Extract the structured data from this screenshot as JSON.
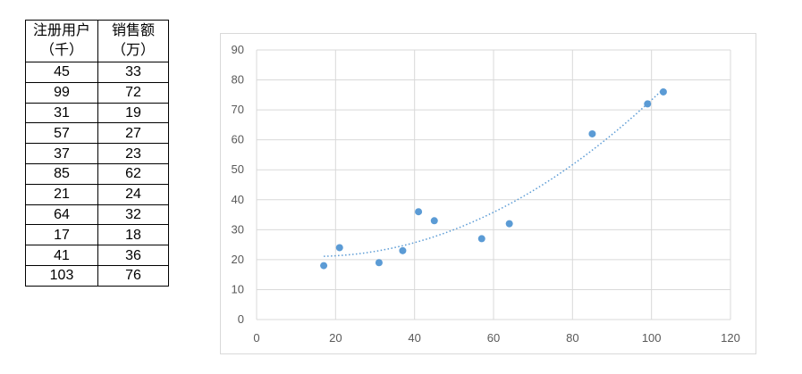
{
  "table": {
    "headers": [
      {
        "line1": "注册用户",
        "line2": "（千）"
      },
      {
        "line1": "销售额",
        "line2": "（万）"
      }
    ],
    "rows": [
      [
        45,
        33
      ],
      [
        99,
        72
      ],
      [
        31,
        19
      ],
      [
        57,
        27
      ],
      [
        37,
        23
      ],
      [
        85,
        62
      ],
      [
        21,
        24
      ],
      [
        64,
        32
      ],
      [
        17,
        18
      ],
      [
        41,
        36
      ],
      [
        103,
        76
      ]
    ]
  },
  "chart_data": {
    "type": "scatter",
    "title": "",
    "xlabel": "",
    "ylabel": "",
    "xlim": [
      0,
      120
    ],
    "ylim": [
      0,
      90
    ],
    "xticks": [
      0,
      20,
      40,
      60,
      80,
      100,
      120
    ],
    "yticks": [
      0,
      10,
      20,
      30,
      40,
      50,
      60,
      70,
      80,
      90
    ],
    "grid": true,
    "trendline": "polynomial (order 2), dotted",
    "color": "#5b9bd5",
    "points": [
      [
        45,
        33
      ],
      [
        99,
        72
      ],
      [
        31,
        19
      ],
      [
        57,
        27
      ],
      [
        37,
        23
      ],
      [
        85,
        62
      ],
      [
        21,
        24
      ],
      [
        64,
        32
      ],
      [
        17,
        18
      ],
      [
        41,
        36
      ],
      [
        103,
        76
      ]
    ]
  }
}
